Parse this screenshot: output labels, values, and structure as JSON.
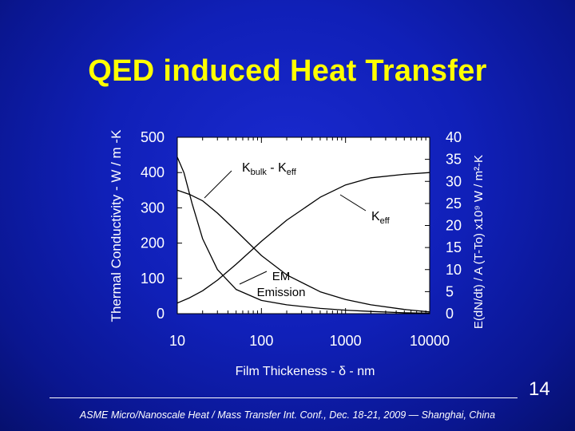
{
  "slide": {
    "title": "QED induced Heat Transfer",
    "slide_number": "14",
    "footer": "ASME Micro/Nanoscale Heat / Mass Transfer Int. Conf.,  Dec. 18-21, 2009 — Shanghai, China",
    "colors": {
      "background": "#1020b8",
      "title": "#ffff00",
      "plot_background": "#ffffff",
      "text": "#ffffff"
    }
  },
  "chart_data": {
    "type": "line",
    "xlabel": "Film Thickeness - δ - nm",
    "ylabel": "Thermal Conductivity - W / m -K",
    "y2label": "E(dN/dt) / A (T-To) x10⁹ W / m²-K",
    "xscale": "log",
    "xlim": [
      10,
      10000
    ],
    "ylim": [
      0,
      500
    ],
    "y2lim": [
      0,
      40
    ],
    "x_ticks": [
      "10",
      "100",
      "1000",
      "10000"
    ],
    "y_ticks": [
      "0",
      "100",
      "200",
      "300",
      "400",
      "500"
    ],
    "y2_ticks": [
      "0",
      "5",
      "10",
      "15",
      "20",
      "25",
      "30",
      "35",
      "40"
    ],
    "grid": false,
    "series": [
      {
        "name": "Kbulk - Keff",
        "axis": "left",
        "x": [
          10,
          14,
          20,
          30,
          50,
          100,
          200,
          500,
          1000,
          2000,
          5000,
          10000
        ],
        "y": [
          350,
          338,
          320,
          285,
          235,
          165,
          110,
          62,
          40,
          25,
          12,
          5
        ]
      },
      {
        "name": "Keff",
        "axis": "left",
        "x": [
          10,
          14,
          20,
          30,
          50,
          100,
          200,
          500,
          1000,
          2000,
          5000,
          10000
        ],
        "y": [
          30,
          45,
          65,
          95,
          140,
          205,
          265,
          330,
          365,
          385,
          395,
          400
        ]
      },
      {
        "name": "EM Emission",
        "axis": "right",
        "x": [
          10,
          12,
          15,
          20,
          30,
          50,
          100,
          200,
          500,
          1000,
          2000,
          5000,
          10000
        ],
        "y": [
          35.5,
          32,
          25,
          17,
          10,
          5.5,
          3,
          2,
          1.2,
          0.8,
          0.5,
          0.2,
          0.1
        ]
      }
    ],
    "annotations": [
      {
        "text": "K",
        "sub": "bulk",
        "tail": " - K",
        "sub2": "eff",
        "series": "Kbulk - Keff"
      },
      {
        "text": "K",
        "sub": "eff",
        "series": "Keff"
      },
      {
        "lines": [
          "EM",
          "Emission"
        ],
        "series": "EM Emission"
      }
    ]
  }
}
